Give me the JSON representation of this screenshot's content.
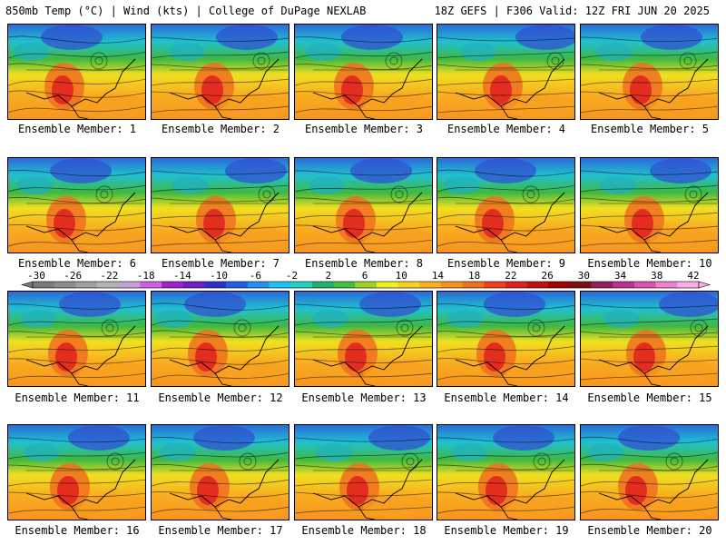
{
  "header": {
    "left": "850mb Temp (°C) | Wind (kts) | College of DuPage NEXLAB",
    "right": "18Z GEFS | F306 Valid: 12Z FRI JUN 20 2025"
  },
  "members": [
    "Ensemble Member: 1",
    "Ensemble Member: 2",
    "Ensemble Member: 3",
    "Ensemble Member: 4",
    "Ensemble Member: 5",
    "Ensemble Member: 6",
    "Ensemble Member: 7",
    "Ensemble Member: 8",
    "Ensemble Member: 9",
    "Ensemble Member: 10",
    "Ensemble Member: 11",
    "Ensemble Member: 12",
    "Ensemble Member: 13",
    "Ensemble Member: 14",
    "Ensemble Member: 15",
    "Ensemble Member: 16",
    "Ensemble Member: 17",
    "Ensemble Member: 18",
    "Ensemble Member: 19",
    "Ensemble Member: 20"
  ],
  "colorbar": {
    "labels": [
      "-30",
      "-26",
      "-22",
      "-18",
      "-14",
      "-10",
      "-6",
      "-2",
      "2",
      "6",
      "10",
      "14",
      "18",
      "22",
      "26",
      "30",
      "34",
      "38",
      "42"
    ],
    "colors": [
      "#7a7a7a",
      "#8c8c8c",
      "#a0a0a0",
      "#b4b4b4",
      "#c8a0d8",
      "#cc60e0",
      "#a020d0",
      "#7020c0",
      "#3030c8",
      "#2060e0",
      "#2090f0",
      "#20c0f0",
      "#20d0c0",
      "#20b070",
      "#40c040",
      "#a0d020",
      "#f0f020",
      "#f8d020",
      "#f8b020",
      "#f89020",
      "#f07020",
      "#f04020",
      "#e02020",
      "#c01010",
      "#a00000",
      "#801010",
      "#902060",
      "#c03090",
      "#e050b0",
      "#f080d0",
      "#f8b0e8"
    ]
  }
}
